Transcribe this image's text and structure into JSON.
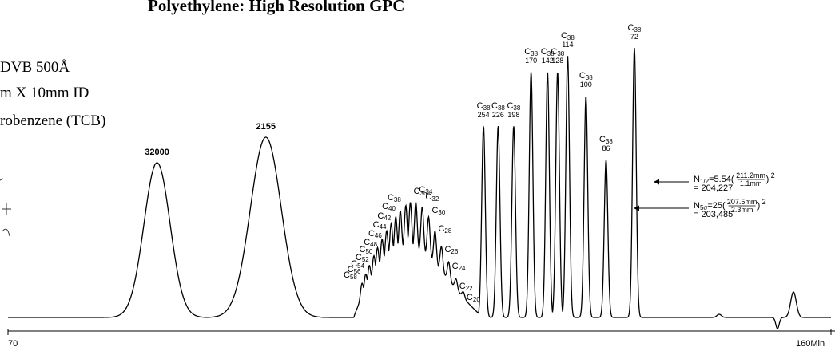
{
  "chart_data": {
    "type": "line",
    "title": "Polyethylene: High Resolution GPC",
    "conditions": [
      "DVB 500Å",
      "m X 10mm ID",
      "robenzene (TCB)"
    ],
    "x_ticks": [
      "70",
      "160Min"
    ],
    "x_range": [
      70,
      160
    ],
    "standard_peaks": [
      {
        "label": "32000",
        "x": 86.3
      },
      {
        "label": "2155",
        "x": 98.2
      }
    ],
    "oligomer_peaks": [
      {
        "label": "C58",
        "x": 108.7
      },
      {
        "label": "C56",
        "x": 109.1
      },
      {
        "label": "C54",
        "x": 109.5
      },
      {
        "label": "C52",
        "x": 110.0
      },
      {
        "label": "C50",
        "x": 110.4
      },
      {
        "label": "C48",
        "x": 110.9
      },
      {
        "label": "C46",
        "x": 111.4
      },
      {
        "label": "C44",
        "x": 111.9
      },
      {
        "label": "C42",
        "x": 112.4
      },
      {
        "label": "C40",
        "x": 112.9
      },
      {
        "label": "C38",
        "x": 113.5
      },
      {
        "label": "C36",
        "x": 114.0
      },
      {
        "label": "C34",
        "x": 114.6
      },
      {
        "label": "C32",
        "x": 115.3
      },
      {
        "label": "C30",
        "x": 116.0
      },
      {
        "label": "C28",
        "x": 116.7
      },
      {
        "label": "C26",
        "x": 117.4
      },
      {
        "label": "C24",
        "x": 118.2
      },
      {
        "label": "C22",
        "x": 119.0
      },
      {
        "label": "C20",
        "x": 119.8
      }
    ],
    "c38_peaks": [
      {
        "label": "C38",
        "sub": "254",
        "x": 122.0
      },
      {
        "label": "C38",
        "sub": "226",
        "x": 123.6
      },
      {
        "label": "C38",
        "sub": "198",
        "x": 125.3
      },
      {
        "label": "C38",
        "sub": "170",
        "x": 127.2
      },
      {
        "label": "C38",
        "sub": "142",
        "x": 129.0
      },
      {
        "label": "C38",
        "sub": "128",
        "x": 130.1
      },
      {
        "label": "C38",
        "sub": "114",
        "x": 131.2
      },
      {
        "label": "C38",
        "sub": "100",
        "x": 133.2
      },
      {
        "label": "C38",
        "sub": "86",
        "x": 135.4
      },
      {
        "label": "C38",
        "sub": "72",
        "x": 138.5
      }
    ],
    "annotations": [
      {
        "prefix": "N",
        "subscript": "1/2",
        "text": "=5.54(",
        "num": "211.2mm",
        "den": "1.1mm",
        "sup": "2",
        "result": "= 204,227"
      },
      {
        "prefix": "N",
        "subscript": "5σ",
        "text": "=25(",
        "num": "207.5mm",
        "den": "2.3mm",
        "sup": "2",
        "result": "= 203,485"
      }
    ],
    "grid": false
  }
}
